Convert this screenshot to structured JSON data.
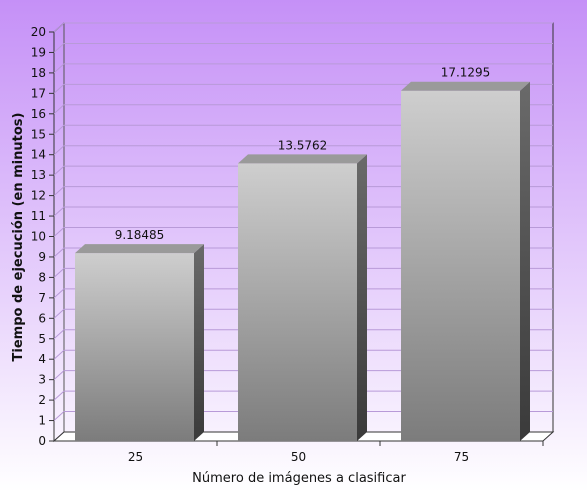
{
  "chart_data": {
    "type": "bar",
    "title": "",
    "xlabel": "Número de imágenes a clasificar",
    "ylabel": "Tiempo de ejecución (en minutos)",
    "categories": [
      "25",
      "50",
      "75"
    ],
    "values": [
      9.18485,
      13.5762,
      17.1295
    ],
    "data_labels": [
      "9.18485",
      "13.5762",
      "17.1295"
    ],
    "ylim": [
      0,
      20
    ],
    "yticks": [
      "0",
      "1",
      "2",
      "3",
      "4",
      "5",
      "6",
      "7",
      "8",
      "9",
      "10",
      "11",
      "12",
      "13",
      "14",
      "15",
      "16",
      "17",
      "18",
      "19",
      "20"
    ],
    "grid": true,
    "style": "3d",
    "colors": {
      "background_top": "#c590f7",
      "background_bottom": "#ffffff",
      "bar_light": "#cecece",
      "bar_dark": "#7c7c7c",
      "bar_top": "#9a9a9a",
      "bar_side": "#4a4a4a",
      "grid": "#b89ad8"
    }
  }
}
